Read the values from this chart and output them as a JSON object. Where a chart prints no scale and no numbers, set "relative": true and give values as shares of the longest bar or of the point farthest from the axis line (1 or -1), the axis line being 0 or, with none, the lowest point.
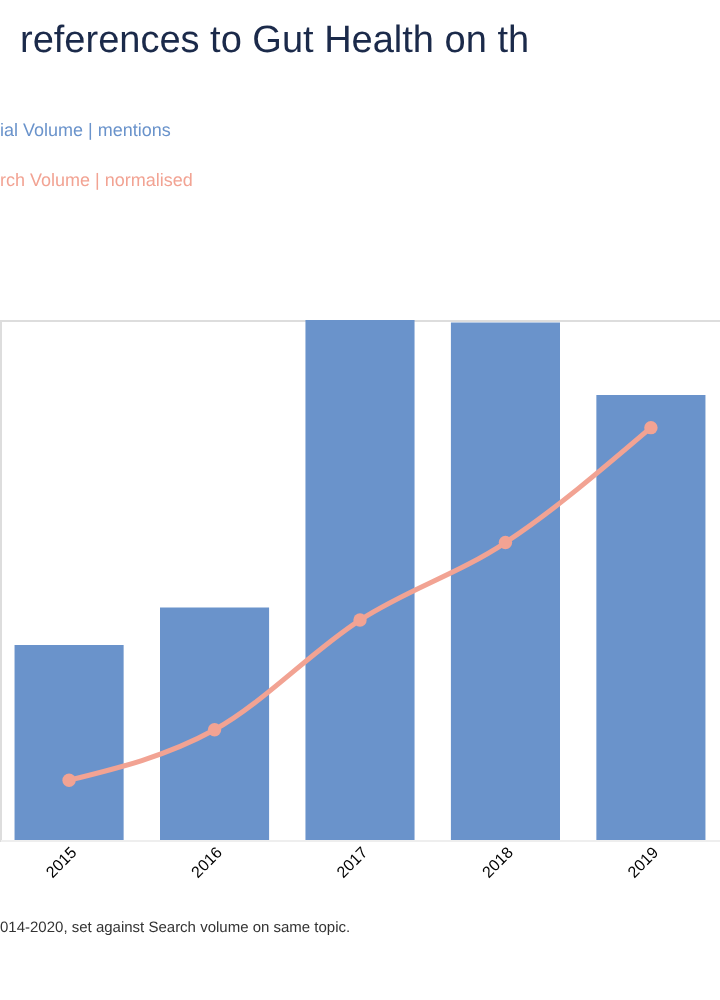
{
  "chart_data": {
    "type": "bar",
    "title": "references to Gut Health on th",
    "relative": true,
    "categories": [
      "2015",
      "2016",
      "2017",
      "2018",
      "2019"
    ],
    "series": [
      {
        "name": "ial Volume | mentions",
        "color": "#6a93cb",
        "values": [
          0.375,
          0.447,
          1,
          0.995,
          0.856
        ]
      },
      {
        "name": "rch Volume | normalised",
        "type": "line",
        "color": "#f2a393",
        "values": [
          0.115,
          0.212,
          0.423,
          0.572,
          0.793
        ]
      }
    ],
    "marker": "circle",
    "annotations": [
      "014-2020, set against Search volume on same topic."
    ]
  }
}
